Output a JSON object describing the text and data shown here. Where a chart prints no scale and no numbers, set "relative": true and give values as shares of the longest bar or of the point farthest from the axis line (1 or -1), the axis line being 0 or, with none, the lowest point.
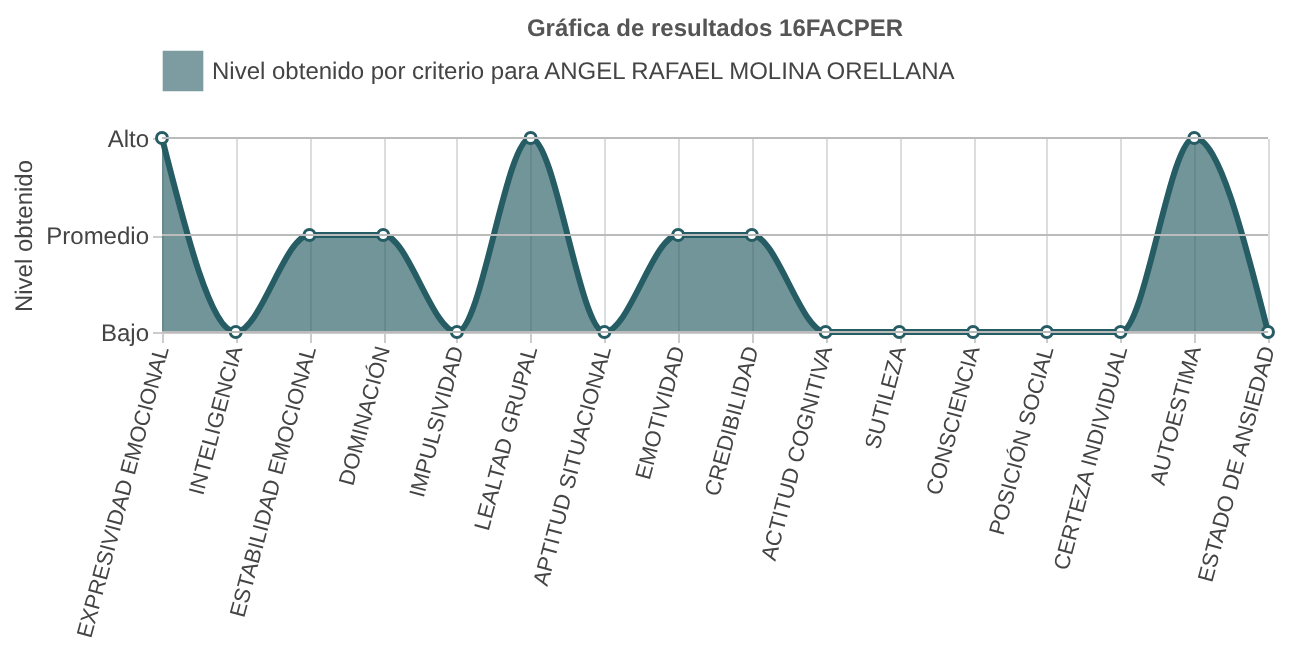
{
  "chart_data": {
    "type": "area",
    "title": "Gráfica de resultados 16FACPER",
    "ylabel": "Nivel obtenido",
    "categories": [
      "EXPRESIVIDAD EMOCIONAL",
      "INTELIGENCIA",
      "ESTABILIDAD EMOCIONAL",
      "DOMINACIÓN",
      "IMPULSIVIDAD",
      "LEALTAD GRUPAL",
      "APTITUD SITUACIONAL",
      "EMOTIVIDAD",
      "CREDIBILIDAD",
      "ACTITUD COGNITIVA",
      "SUTILEZA",
      "CONSCIENCIA",
      "POSICIÓN SOCIAL",
      "CERTEZA INDIVIDUAL",
      "AUTOESTIMA",
      "ESTADO DE ANSIEDAD"
    ],
    "series": [
      {
        "name": "Nivel obtenido por criterio para ANGEL RAFAEL MOLINA ORELLANA",
        "color": "#265c63",
        "values": [
          1,
          0,
          0.5,
          0.5,
          0,
          1,
          0,
          0.5,
          0.5,
          0,
          0,
          0,
          0,
          0,
          1,
          0
        ]
      }
    ],
    "relative": true,
    "y_categories": [
      "Alto",
      "Promedio",
      "Bajo"
    ],
    "ref_lines": [
      {
        "axis": "y",
        "value": 1,
        "color": "#bbbbbb"
      },
      {
        "axis": "y",
        "value": 0.5,
        "color": "#bbbbbb"
      },
      {
        "axis": "y",
        "value": 0,
        "color": "#bbbbbb"
      }
    ],
    "grid": "x",
    "legend": "top",
    "marker": "circle",
    "line_style": "solid"
  }
}
